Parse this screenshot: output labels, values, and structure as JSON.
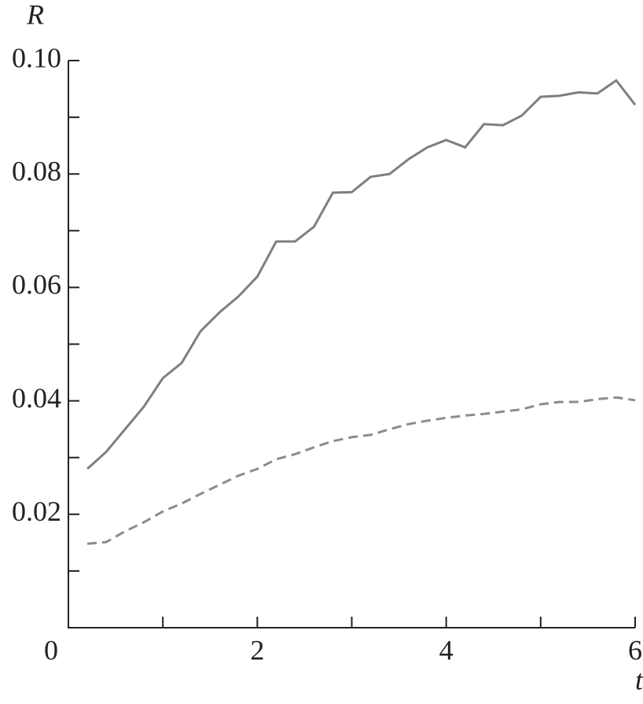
{
  "chart_data": {
    "type": "line",
    "ylabel": "R",
    "xlabel": "t",
    "x": [
      0.2,
      0.4,
      0.6,
      0.8,
      1.0,
      1.2,
      1.4,
      1.6,
      1.8,
      2.0,
      2.2,
      2.4,
      2.6,
      2.8,
      3.0,
      3.2,
      3.4,
      3.6,
      3.8,
      4.0,
      4.2,
      4.4,
      4.6,
      4.8,
      5.0,
      5.2,
      5.4,
      5.6,
      5.8,
      6.0
    ],
    "series": [
      {
        "color": "#7f7f7f",
        "dash": false,
        "values": [
          0.028,
          0.031,
          0.035,
          0.039,
          0.044,
          0.0467,
          0.0523,
          0.0556,
          0.0584,
          0.0619,
          0.0681,
          0.0681,
          0.0707,
          0.0767,
          0.0768,
          0.0795,
          0.08,
          0.0826,
          0.0847,
          0.086,
          0.0847,
          0.0888,
          0.0886,
          0.0903,
          0.0936,
          0.0938,
          0.0944,
          0.0942,
          0.0965,
          0.0922
        ]
      },
      {
        "color": "#8c8c8c",
        "dash": true,
        "values": [
          0.0148,
          0.0151,
          0.017,
          0.0186,
          0.0205,
          0.0219,
          0.0236,
          0.0252,
          0.0268,
          0.028,
          0.0297,
          0.0306,
          0.0318,
          0.0329,
          0.0336,
          0.034,
          0.035,
          0.0359,
          0.0365,
          0.037,
          0.0374,
          0.0377,
          0.0381,
          0.0385,
          0.0394,
          0.0398,
          0.0398,
          0.0403,
          0.0406,
          0.0401
        ]
      }
    ],
    "xlim": [
      0,
      6
    ],
    "xticks": [
      0,
      2,
      4,
      6
    ],
    "xminorticks": [
      1,
      3,
      5
    ],
    "ylim": [
      0,
      0.1
    ],
    "yticks": [
      0.02,
      0.04,
      0.06,
      0.08,
      {
        "value": 0.1,
        "label": "0.10"
      }
    ],
    "yminorticks": [
      0.01,
      0.03,
      0.05,
      0.07,
      0.09
    ]
  }
}
